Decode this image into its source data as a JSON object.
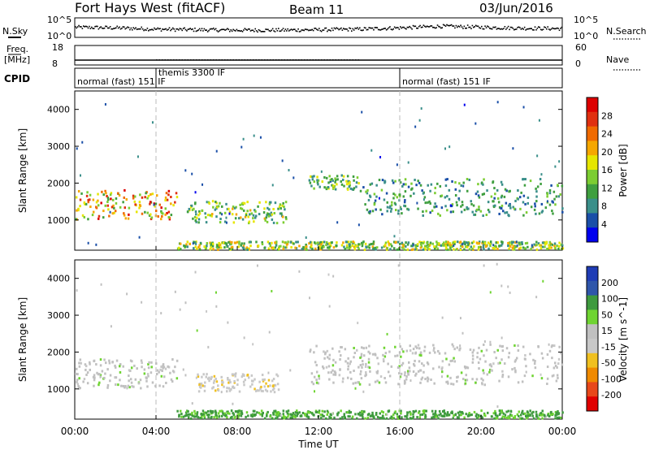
{
  "header": {
    "title": "Fort Hays West (fitACF)",
    "beam": "Beam 11",
    "date": "03/Jun/2016"
  },
  "side_labels": {
    "nsky": "N.Sky",
    "freq_line1": "Freq.",
    "freq_line2": "[MHz]",
    "cpid": "CPID",
    "nsearch": "N.Search",
    "nave": "Nave"
  },
  "cpid_labels": [
    {
      "text": "normal (fast) 151 IF",
      "start_hour": 0
    },
    {
      "text": "themis 3300 IF",
      "start_hour": 4
    },
    {
      "text": "normal (fast) 151 IF",
      "start_hour": 16
    }
  ],
  "colors": {
    "power": [
      "#0000ee",
      "#1a4fa8",
      "#3a8f8a",
      "#3f9f3f",
      "#7ccd32",
      "#e6e600",
      "#f5a700",
      "#f06a00",
      "#e03010",
      "#dd0000"
    ],
    "velocity": [
      "#1f3cb5",
      "#2f56aa",
      "#3e9a3e",
      "#6fd432",
      "#c0c0c0",
      "#c8c8c8",
      "#f0c020",
      "#f08a00",
      "#e8481a",
      "#e00000"
    ]
  },
  "chart_data": [
    {
      "type": "line",
      "name": "noise-search",
      "ylabel_left": "N.Sky",
      "ylabel_right": "N.Search",
      "y_ticks_left": [
        "10^5",
        "10^0"
      ],
      "y_ticks_right": [
        "10^5",
        "10^0"
      ],
      "x_range_hours": [
        0,
        24
      ],
      "x": [
        0,
        2,
        4,
        6,
        8,
        10,
        12,
        14,
        16,
        18,
        20,
        22,
        24
      ],
      "values": [
        0.55,
        0.52,
        0.45,
        0.42,
        0.4,
        0.4,
        0.42,
        0.45,
        0.52,
        0.6,
        0.55,
        0.5,
        0.48
      ]
    },
    {
      "type": "line",
      "name": "freq-nave",
      "ylabel_left": "Freq. [MHz]",
      "ylabel_right": "Nave",
      "y_ticks_left": [
        "18",
        "8"
      ],
      "y_ticks_right": [
        "60",
        "0"
      ],
      "x_range_hours": [
        0,
        24
      ],
      "freq_mhz": 10.5,
      "nave": 16
    },
    {
      "type": "heatmap",
      "name": "power",
      "ylabel": "Slant Range [km]",
      "colorbar_label": "Power [dB]",
      "colorbar_ticks": [
        4,
        8,
        12,
        16,
        20,
        24,
        28
      ],
      "ylim": [
        180,
        4500
      ],
      "y_ticks": [
        1000,
        2000,
        3000,
        4000
      ],
      "x_range_hours": [
        0,
        24
      ],
      "features": [
        {
          "hours": [
            0,
            5
          ],
          "range_km": [
            1000,
            1800
          ],
          "peak_db": 30
        },
        {
          "hours": [
            5.5,
            10.5
          ],
          "range_km": [
            900,
            1500
          ],
          "peak_db": 20
        },
        {
          "hours": [
            5,
            24
          ],
          "range_km": [
            180,
            400
          ],
          "peak_db": 22
        },
        {
          "hours": [
            11.5,
            14
          ],
          "range_km": [
            1800,
            2200
          ],
          "peak_db": 18
        },
        {
          "hours": [
            14,
            24
          ],
          "range_km": [
            1100,
            2100
          ],
          "peak_db": 14
        }
      ]
    },
    {
      "type": "heatmap",
      "name": "velocity",
      "ylabel": "Slant Range [km]",
      "colorbar_label": "Velocity [m s^-1]",
      "colorbar_ticks": [
        200,
        100,
        50,
        15,
        -15,
        -50,
        -100,
        -200
      ],
      "ylim": [
        180,
        4500
      ],
      "y_ticks": [
        1000,
        2000,
        3000,
        4000
      ],
      "x_range_hours": [
        0,
        24
      ],
      "features": [
        {
          "hours": [
            0,
            5
          ],
          "range_km": [
            1000,
            1800
          ],
          "velocity": 0
        },
        {
          "hours": [
            6,
            10
          ],
          "range_km": [
            900,
            1400
          ],
          "velocity": -40
        },
        {
          "hours": [
            5,
            24
          ],
          "range_km": [
            180,
            400
          ],
          "velocity": 60
        },
        {
          "hours": [
            11.5,
            24
          ],
          "range_km": [
            1100,
            2200
          ],
          "velocity": 0
        }
      ]
    }
  ],
  "x_axis": {
    "ticks": [
      "00:00",
      "04:00",
      "08:00",
      "12:00",
      "16:00",
      "20:00",
      "00:00"
    ],
    "label": "Time UT"
  }
}
